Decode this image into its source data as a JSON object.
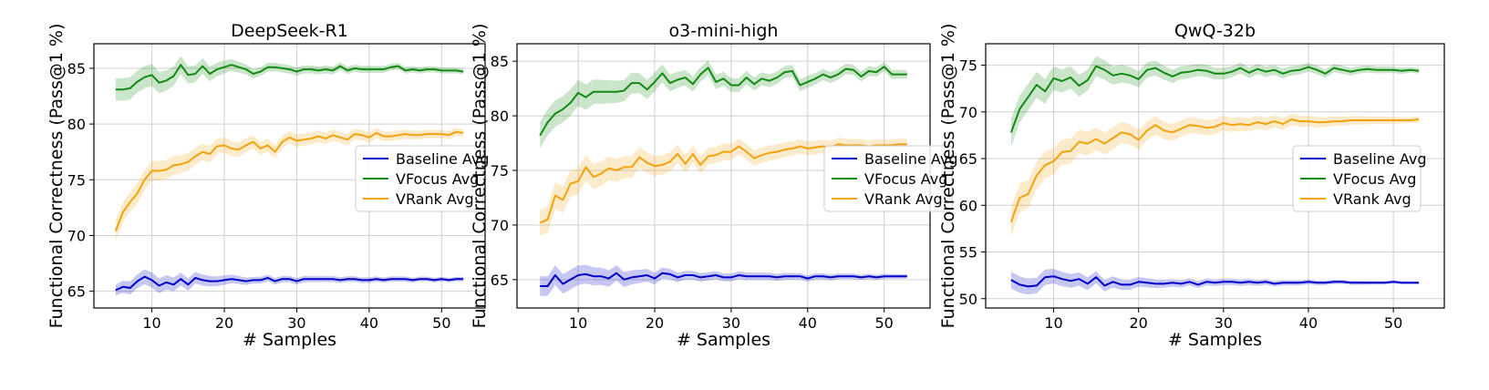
{
  "chart_data": [
    {
      "type": "line",
      "title": "DeepSeek-R1",
      "xlabel": "# Samples",
      "ylabel": "Functional Correctness (Pass@1 %)",
      "xlim": [
        2,
        56
      ],
      "ylim": [
        63.5,
        87.2
      ],
      "xticks": [
        10,
        20,
        30,
        40,
        50
      ],
      "yticks": [
        65,
        70,
        75,
        80,
        85
      ],
      "grid": true,
      "legend_position": "center-right",
      "x": [
        5,
        6,
        7,
        8,
        9,
        10,
        11,
        12,
        13,
        14,
        15,
        16,
        17,
        18,
        19,
        20,
        21,
        22,
        23,
        24,
        25,
        26,
        27,
        28,
        29,
        30,
        31,
        32,
        33,
        34,
        35,
        36,
        37,
        38,
        39,
        40,
        41,
        42,
        43,
        44,
        45,
        46,
        47,
        48,
        49,
        50,
        51,
        52,
        53
      ],
      "series": [
        {
          "name": "Baseline Avg",
          "color": "#0000cc",
          "band": [
            0.5,
            0.7,
            0.3,
            0.2
          ],
          "values": [
            65.1,
            65.4,
            65.3,
            65.9,
            66.3,
            66.0,
            65.5,
            65.8,
            65.6,
            66.1,
            65.6,
            66.2,
            66.0,
            65.9,
            65.9,
            66.0,
            66.1,
            66.0,
            65.9,
            66.0,
            66.0,
            66.2,
            65.9,
            66.1,
            66.1,
            65.9,
            66.1,
            66.1,
            66.1,
            66.1,
            66.1,
            66.0,
            66.1,
            66.1,
            66.0,
            66.0,
            66.1,
            66.0,
            66.1,
            66.1,
            66.1,
            66.0,
            66.1,
            66.1,
            66.0,
            66.1,
            66.0,
            66.1,
            66.1
          ]
        },
        {
          "name": "VFocus Avg",
          "color": "#138a13",
          "band": [
            1.0,
            1.0,
            0.4,
            0.25
          ],
          "values": [
            83.1,
            83.1,
            83.2,
            83.8,
            84.2,
            84.4,
            83.7,
            83.9,
            84.3,
            85.3,
            84.4,
            84.5,
            85.2,
            84.5,
            84.9,
            85.1,
            85.3,
            85.1,
            84.9,
            84.5,
            84.7,
            85.1,
            85.1,
            85.0,
            84.9,
            84.7,
            84.9,
            84.9,
            84.8,
            84.9,
            84.8,
            85.2,
            84.8,
            85.0,
            84.9,
            84.9,
            84.9,
            84.9,
            85.1,
            85.2,
            84.8,
            84.9,
            84.8,
            84.9,
            84.9,
            84.8,
            84.8,
            84.8,
            84.7
          ]
        },
        {
          "name": "VRank Avg",
          "color": "#f2a20c",
          "band": [
            0.9,
            0.9,
            0.6,
            0.35
          ],
          "values": [
            70.4,
            72.1,
            73.0,
            73.8,
            75.0,
            75.8,
            75.8,
            75.9,
            76.3,
            76.4,
            76.6,
            77.1,
            77.5,
            77.3,
            78.0,
            78.1,
            77.8,
            77.7,
            78.1,
            78.4,
            77.8,
            78.1,
            77.5,
            78.4,
            78.8,
            78.5,
            78.6,
            78.7,
            78.9,
            78.7,
            79.0,
            78.8,
            78.6,
            79.1,
            79.0,
            78.8,
            79.2,
            78.9,
            78.9,
            79.0,
            79.1,
            79.0,
            79.0,
            79.1,
            79.1,
            79.1,
            79.0,
            79.3,
            79.2
          ]
        }
      ]
    },
    {
      "type": "line",
      "title": "o3-mini-high",
      "xlabel": "# Samples",
      "ylabel": "Functional Correctness (Pass@1 %)",
      "xlim": [
        2,
        56
      ],
      "ylim": [
        62.4,
        86.6
      ],
      "xticks": [
        10,
        20,
        30,
        40,
        50
      ],
      "yticks": [
        65,
        70,
        75,
        80,
        85
      ],
      "grid": true,
      "legend_position": "center-right",
      "x": [
        5,
        6,
        7,
        8,
        9,
        10,
        11,
        12,
        13,
        14,
        15,
        16,
        17,
        18,
        19,
        20,
        21,
        22,
        23,
        24,
        25,
        26,
        27,
        28,
        29,
        30,
        31,
        32,
        33,
        34,
        35,
        36,
        37,
        38,
        39,
        40,
        41,
        42,
        43,
        44,
        45,
        46,
        47,
        48,
        49,
        50,
        51,
        52,
        53
      ],
      "series": [
        {
          "name": "Baseline Avg",
          "color": "#0000cc",
          "band": [
            0.9,
            0.9,
            0.4,
            0.2
          ],
          "values": [
            64.4,
            64.4,
            65.4,
            64.6,
            65.0,
            65.4,
            65.5,
            65.3,
            65.3,
            65.1,
            65.6,
            65.0,
            65.2,
            65.3,
            65.4,
            65.1,
            65.6,
            65.5,
            65.2,
            65.4,
            65.4,
            65.2,
            65.3,
            65.4,
            65.2,
            65.2,
            65.4,
            65.3,
            65.3,
            65.3,
            65.3,
            65.2,
            65.3,
            65.3,
            65.3,
            65.1,
            65.3,
            65.3,
            65.2,
            65.3,
            65.3,
            65.3,
            65.2,
            65.3,
            65.2,
            65.3,
            65.3,
            65.3,
            65.3
          ]
        },
        {
          "name": "VFocus Avg",
          "color": "#138a13",
          "band": [
            1.2,
            1.2,
            0.7,
            0.4
          ],
          "values": [
            78.2,
            79.4,
            80.2,
            80.6,
            81.2,
            82.1,
            81.7,
            82.2,
            82.2,
            82.2,
            82.2,
            82.3,
            83.0,
            83.0,
            82.4,
            83.1,
            83.9,
            83.0,
            83.3,
            83.5,
            82.9,
            83.8,
            84.4,
            83.1,
            83.4,
            82.8,
            82.8,
            83.5,
            82.9,
            83.4,
            83.2,
            83.5,
            84.0,
            84.1,
            82.8,
            83.1,
            83.4,
            83.8,
            83.5,
            83.8,
            84.3,
            84.2,
            83.6,
            84.1,
            84.0,
            84.5,
            83.8,
            83.8,
            83.8
          ]
        },
        {
          "name": "VRank Avg",
          "color": "#f2a20c",
          "band": [
            1.2,
            1.2,
            0.8,
            0.5
          ],
          "values": [
            70.2,
            70.5,
            72.7,
            72.3,
            73.8,
            74.0,
            75.3,
            74.4,
            74.7,
            75.2,
            75.0,
            75.3,
            75.3,
            76.2,
            75.7,
            75.4,
            75.5,
            75.8,
            76.5,
            75.6,
            76.5,
            75.5,
            76.3,
            76.4,
            76.7,
            76.7,
            77.2,
            76.7,
            76.1,
            76.4,
            76.6,
            76.7,
            76.9,
            77.0,
            77.2,
            77.0,
            77.1,
            77.2,
            77.1,
            77.4,
            77.3,
            77.3,
            77.3,
            77.2,
            77.3,
            77.3,
            77.3,
            77.4,
            77.4
          ]
        }
      ]
    },
    {
      "type": "line",
      "title": "QwQ-32b",
      "xlabel": "# Samples",
      "ylabel": "Functional Correctness (Pass@1 %)",
      "xlim": [
        2,
        56
      ],
      "ylim": [
        49.0,
        77.3
      ],
      "xticks": [
        10,
        20,
        30,
        40,
        50
      ],
      "yticks": [
        50,
        55,
        60,
        65,
        70,
        75
      ],
      "grid": true,
      "legend_position": "center-right",
      "x": [
        5,
        6,
        7,
        8,
        9,
        10,
        11,
        12,
        13,
        14,
        15,
        16,
        17,
        18,
        19,
        20,
        21,
        22,
        23,
        24,
        25,
        26,
        27,
        28,
        29,
        30,
        31,
        32,
        33,
        34,
        35,
        36,
        37,
        38,
        39,
        40,
        41,
        42,
        43,
        44,
        45,
        46,
        47,
        48,
        49,
        50,
        51,
        52,
        53
      ],
      "series": [
        {
          "name": "Baseline Avg",
          "color": "#0000cc",
          "band": [
            0.9,
            0.8,
            0.4,
            0.15
          ],
          "values": [
            52.0,
            51.5,
            51.3,
            51.4,
            52.3,
            52.4,
            52.1,
            51.9,
            52.1,
            51.6,
            52.3,
            51.4,
            51.8,
            51.5,
            51.5,
            51.8,
            51.7,
            51.6,
            51.6,
            51.7,
            51.6,
            51.8,
            51.5,
            51.8,
            51.7,
            51.8,
            51.8,
            51.7,
            51.8,
            51.7,
            51.8,
            51.6,
            51.7,
            51.7,
            51.7,
            51.8,
            51.7,
            51.7,
            51.8,
            51.8,
            51.7,
            51.7,
            51.7,
            51.7,
            51.7,
            51.8,
            51.7,
            51.7,
            51.7
          ]
        },
        {
          "name": "VFocus Avg",
          "color": "#138a13",
          "band": [
            1.5,
            1.3,
            0.7,
            0.3
          ],
          "values": [
            67.8,
            70.3,
            71.6,
            72.9,
            72.2,
            73.6,
            73.3,
            73.7,
            72.8,
            73.4,
            74.9,
            74.5,
            73.9,
            74.1,
            73.9,
            73.5,
            74.5,
            74.7,
            74.2,
            73.8,
            74.2,
            74.3,
            74.5,
            74.4,
            74.1,
            74.1,
            74.3,
            74.7,
            74.2,
            74.6,
            74.3,
            74.5,
            74.1,
            74.4,
            74.5,
            74.8,
            74.5,
            74.1,
            74.7,
            74.5,
            74.3,
            74.5,
            74.6,
            74.5,
            74.5,
            74.5,
            74.4,
            74.5,
            74.4
          ]
        },
        {
          "name": "VRank Avg",
          "color": "#f2a20c",
          "band": [
            1.6,
            1.4,
            0.9,
            0.3
          ],
          "values": [
            58.2,
            60.8,
            61.2,
            63.2,
            64.3,
            64.7,
            65.7,
            65.8,
            66.8,
            66.6,
            67.1,
            66.6,
            67.2,
            67.8,
            67.6,
            67.0,
            68.0,
            68.6,
            68.0,
            67.8,
            68.2,
            68.6,
            68.5,
            68.3,
            68.4,
            68.8,
            68.6,
            68.7,
            68.6,
            68.9,
            68.7,
            69.0,
            68.7,
            69.2,
            69.0,
            69.0,
            68.9,
            68.9,
            69.0,
            69.0,
            69.1,
            69.1,
            69.1,
            69.1,
            69.1,
            69.1,
            69.1,
            69.1,
            69.2
          ]
        }
      ]
    }
  ]
}
